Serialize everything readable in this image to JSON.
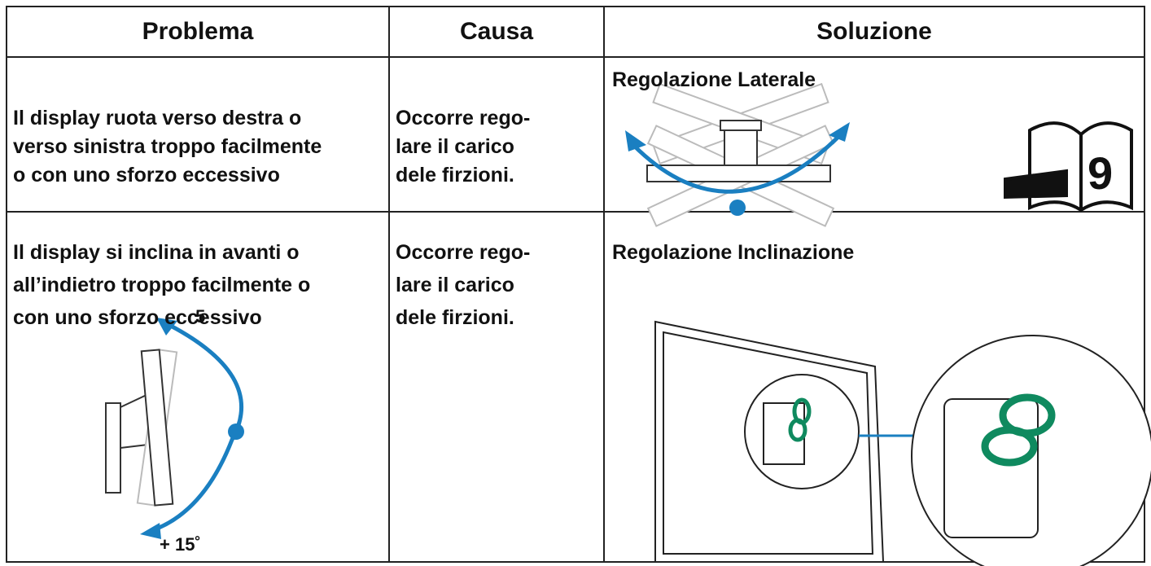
{
  "table": {
    "header": [
      "Problema",
      "Causa",
      "Soluzione"
    ],
    "rows": [
      {
        "problem": [
          "Il display ruota verso destra o",
          "verso sinistra troppo facilmente",
          "o con uno sforzo eccessivo"
        ],
        "cause": [
          "Occorre rego-",
          "lare il carico",
          "dele firzioni."
        ],
        "solution": "Regolazione Laterale",
        "page_ref": "9"
      },
      {
        "problem": [
          "Il display si inclina in avanti o",
          "all’indietro troppo facilmente o",
          "con uno sforzo eccessivo"
        ],
        "cause": [
          "Occorre rego-",
          "lare il carico",
          "dele firzioni."
        ],
        "solution": "Regolazione Inclinazione",
        "angle_back": "5",
        "angle_front": "+ 15˚"
      }
    ]
  }
}
